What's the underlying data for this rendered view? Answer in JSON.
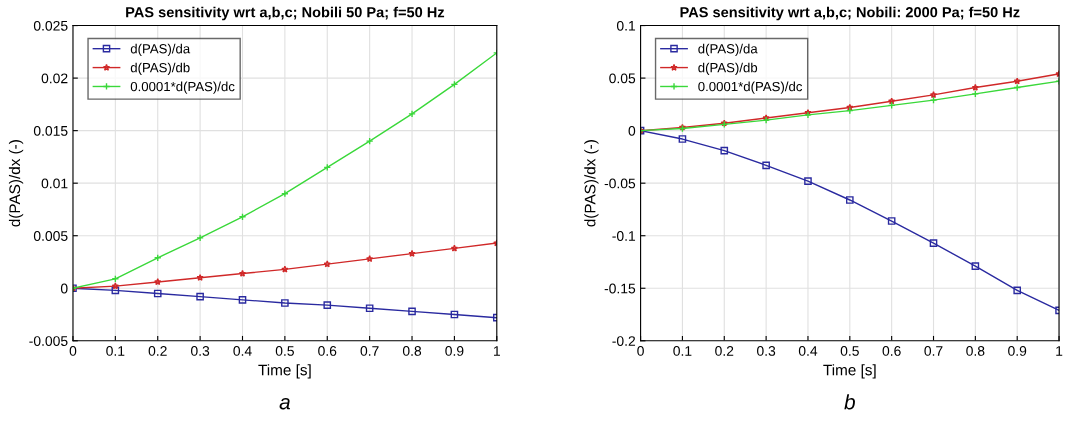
{
  "chart_data": [
    {
      "type": "line",
      "title": "PAS sensitivity wrt a,b,c; Nobili 50 Pa; f=50 Hz",
      "xlabel": "Time [s]",
      "ylabel": "d(PAS)/dx (-)",
      "annotations": [
        "a"
      ],
      "x": [
        0,
        0.1,
        0.2,
        0.3,
        0.4,
        0.5,
        0.6,
        0.7,
        0.8,
        0.9,
        1
      ],
      "series": [
        {
          "name": "d(PAS)/da",
          "color": "#2a2aa0",
          "marker": "square",
          "values": [
            0,
            -0.0002,
            -0.0005,
            -0.0008,
            -0.0011,
            -0.0014,
            -0.0016,
            -0.0019,
            -0.0022,
            -0.0025,
            -0.0028
          ]
        },
        {
          "name": "d(PAS)/db",
          "color": "#d02828",
          "marker": "star",
          "values": [
            0,
            0.0002,
            0.0006,
            0.001,
            0.0014,
            0.0018,
            0.0023,
            0.0028,
            0.0033,
            0.0038,
            0.0043
          ]
        },
        {
          "name": "0.0001*d(PAS)/dc",
          "color": "#3ad83a",
          "marker": "cross",
          "values": [
            0,
            0.0009,
            0.0029,
            0.0048,
            0.0068,
            0.009,
            0.0115,
            0.014,
            0.0166,
            0.0194,
            0.0224
          ]
        }
      ],
      "xlim": [
        0,
        1
      ],
      "xticks": [
        0,
        0.1,
        0.2,
        0.3,
        0.4,
        0.5,
        0.6,
        0.7,
        0.8,
        0.9,
        1
      ],
      "ylim": [
        -0.005,
        0.025
      ],
      "yticks": [
        -0.005,
        0,
        0.005,
        0.01,
        0.015,
        0.02,
        0.025
      ],
      "grid": true,
      "legend": "top left",
      "line_style": "solid"
    },
    {
      "type": "line",
      "title": "PAS sensitivity wrt a,b,c; Nobili: 2000 Pa; f=50 Hz",
      "xlabel": "Time [s]",
      "ylabel": "d(PAS)/dx (-)",
      "annotations": [
        "b"
      ],
      "x": [
        0,
        0.1,
        0.2,
        0.3,
        0.4,
        0.5,
        0.6,
        0.7,
        0.8,
        0.9,
        1
      ],
      "series": [
        {
          "name": "d(PAS)/da",
          "color": "#2a2aa0",
          "marker": "square",
          "values": [
            0,
            -0.008,
            -0.019,
            -0.033,
            -0.048,
            -0.066,
            -0.086,
            -0.107,
            -0.129,
            -0.152,
            -0.171
          ]
        },
        {
          "name": "d(PAS)/db",
          "color": "#d02828",
          "marker": "star",
          "values": [
            0,
            0.003,
            0.007,
            0.012,
            0.017,
            0.022,
            0.028,
            0.034,
            0.041,
            0.047,
            0.054
          ]
        },
        {
          "name": "0.0001*d(PAS)/dc",
          "color": "#3ad83a",
          "marker": "cross",
          "values": [
            0,
            0.002,
            0.006,
            0.01,
            0.015,
            0.019,
            0.024,
            0.029,
            0.035,
            0.041,
            0.047
          ]
        }
      ],
      "xlim": [
        0,
        1
      ],
      "xticks": [
        0,
        0.1,
        0.2,
        0.3,
        0.4,
        0.5,
        0.6,
        0.7,
        0.8,
        0.9,
        1
      ],
      "ylim": [
        -0.2,
        0.1
      ],
      "yticks": [
        -0.2,
        -0.15,
        -0.1,
        -0.05,
        0,
        0.05,
        0.1
      ],
      "grid": true,
      "legend": "top left",
      "line_style": "solid"
    }
  ]
}
